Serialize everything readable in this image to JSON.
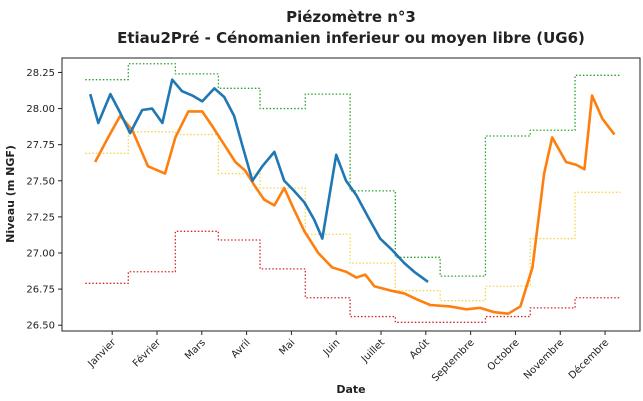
{
  "chart_data": {
    "type": "line",
    "title": "Piézomètre n°3",
    "subtitle": "Etiau2Pré - Cénomanien inferieur ou moyen libre (UG6)",
    "xlabel": "Date",
    "ylabel": "Niveau (m NGF)",
    "xlim": [
      -0.12,
      12.78
    ],
    "xticks": [
      {
        "value": 1,
        "label": "Janvier"
      },
      {
        "value": 2,
        "label": "Février"
      },
      {
        "value": 3,
        "label": "Mars"
      },
      {
        "value": 4,
        "label": "Avril"
      },
      {
        "value": 5,
        "label": "Mai"
      },
      {
        "value": 6,
        "label": "Juin"
      },
      {
        "value": 7,
        "label": "Juillet"
      },
      {
        "value": 8,
        "label": "Août"
      },
      {
        "value": 9,
        "label": "Septembre"
      },
      {
        "value": 10,
        "label": "Octobre"
      },
      {
        "value": 11,
        "label": "Novembre"
      },
      {
        "value": 12,
        "label": "Décembre"
      }
    ],
    "ylim": [
      26.46,
      28.35
    ],
    "yticks": [
      {
        "value": 26.5,
        "label": "26.50"
      },
      26.75,
      {
        "value": 27,
        "label": "27.00"
      },
      27.25,
      {
        "value": 27.5,
        "label": "27.50"
      },
      27.75,
      {
        "value": 28,
        "label": "28.00"
      },
      28.25
    ],
    "series": [
      {
        "color": "#2ca02c",
        "linestyle": "dotted",
        "step": "post",
        "x": [
          0.4,
          1.36,
          2.41,
          3.37,
          4.3,
          5.31,
          6.31,
          7.32,
          8.32,
          9.33,
          10.33,
          11.33,
          12.34
        ],
        "values": [
          28.2,
          28.31,
          28.24,
          28.14,
          28.0,
          28.1,
          27.43,
          26.97,
          26.84,
          27.81,
          27.85,
          28.23,
          28.23
        ]
      },
      {
        "color": "#f5d547",
        "linestyle": "dotted",
        "step": "post",
        "x": [
          0.4,
          1.36,
          2.41,
          3.37,
          4.3,
          5.31,
          6.31,
          7.32,
          8.32,
          9.33,
          10.33,
          11.33,
          12.34
        ],
        "values": [
          27.69,
          27.84,
          27.82,
          27.55,
          27.45,
          27.13,
          26.93,
          26.74,
          26.67,
          26.77,
          27.1,
          27.42,
          27.42
        ]
      },
      {
        "color": "#d62728",
        "linestyle": "dotted",
        "step": "post",
        "x": [
          0.4,
          1.36,
          2.41,
          3.37,
          4.3,
          5.31,
          6.31,
          7.32,
          8.32,
          9.33,
          10.33,
          11.33,
          12.34
        ],
        "values": [
          26.79,
          26.87,
          27.15,
          27.09,
          26.89,
          26.69,
          26.56,
          26.52,
          26.52,
          26.56,
          26.62,
          26.69,
          26.69
        ]
      },
      {
        "color": "#ff7f0e",
        "linestyle": "solid",
        "x": [
          0.62,
          0.91,
          1.18,
          1.45,
          1.8,
          2.18,
          2.41,
          2.7,
          3.01,
          3.23,
          3.5,
          3.75,
          3.97,
          4.17,
          4.39,
          4.62,
          4.84,
          5.06,
          5.29,
          5.6,
          5.91,
          6.22,
          6.45,
          6.65,
          6.85,
          7.21,
          7.52,
          7.79,
          8.1,
          8.54,
          8.9,
          9.21,
          9.53,
          9.84,
          10.11,
          10.38,
          10.64,
          10.82,
          11.13,
          11.36,
          11.54,
          11.71,
          11.94,
          12.21
        ],
        "values": [
          27.63,
          27.8,
          27.95,
          27.85,
          27.6,
          27.55,
          27.8,
          27.98,
          27.98,
          27.88,
          27.75,
          27.63,
          27.57,
          27.47,
          27.37,
          27.33,
          27.45,
          27.3,
          27.15,
          27.0,
          26.9,
          26.87,
          26.83,
          26.85,
          26.77,
          26.74,
          26.72,
          26.68,
          26.64,
          26.63,
          26.61,
          26.62,
          26.59,
          26.58,
          26.63,
          26.9,
          27.55,
          27.8,
          27.63,
          27.61,
          27.58,
          28.09,
          27.93,
          27.82
        ]
      },
      {
        "color": "#1f77b4",
        "linestyle": "solid",
        "x": [
          0.51,
          0.69,
          0.96,
          1.18,
          1.4,
          1.67,
          1.89,
          2.12,
          2.34,
          2.56,
          2.79,
          3.01,
          3.28,
          3.5,
          3.72,
          3.9,
          4.13,
          4.35,
          4.62,
          4.84,
          5.06,
          5.29,
          5.51,
          5.69,
          6.0,
          6.22,
          6.45,
          6.71,
          6.98,
          7.25,
          7.52,
          7.74,
          8.05
        ],
        "values": [
          28.1,
          27.9,
          28.1,
          27.97,
          27.83,
          27.99,
          28.0,
          27.9,
          28.2,
          28.12,
          28.09,
          28.05,
          28.14,
          28.08,
          27.95,
          27.75,
          27.5,
          27.6,
          27.7,
          27.5,
          27.43,
          27.35,
          27.23,
          27.1,
          27.68,
          27.5,
          27.4,
          27.25,
          27.1,
          27.02,
          26.93,
          26.87,
          26.8
        ]
      }
    ]
  }
}
